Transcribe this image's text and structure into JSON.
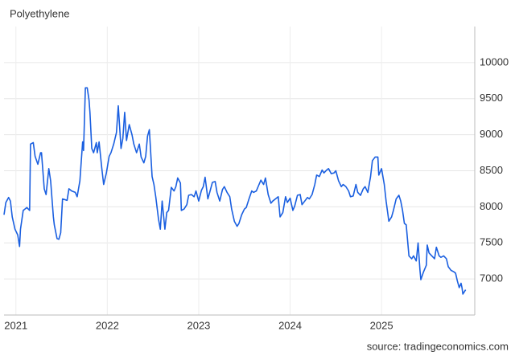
{
  "chart_data": {
    "type": "line",
    "title": "Polyethylene",
    "source": "source: tradingeconomics.com",
    "color": "#1a5fe0",
    "grid": true,
    "xlim": [
      2020.87,
      2026.02
    ],
    "xticks": [
      2021,
      2022,
      2023,
      2024,
      2025
    ],
    "ylim": [
      6500,
      10500
    ],
    "yticks": [
      7000,
      7500,
      8000,
      8500,
      9000,
      9500,
      10000
    ],
    "x": [
      2020.87,
      2020.89,
      2020.92,
      2020.94,
      2020.96,
      2020.99,
      2021.02,
      2021.04,
      2021.05,
      2021.08,
      2021.12,
      2021.15,
      2021.16,
      2021.19,
      2021.21,
      2021.24,
      2021.27,
      2021.28,
      2021.31,
      2021.33,
      2021.36,
      2021.38,
      2021.41,
      2021.42,
      2021.45,
      2021.47,
      2021.49,
      2021.51,
      2021.56,
      2021.58,
      2021.61,
      2021.65,
      2021.67,
      2021.7,
      2021.73,
      2021.74,
      2021.76,
      2021.78,
      2021.8,
      2021.81,
      2021.83,
      2021.85,
      2021.88,
      2021.89,
      2021.91,
      2021.94,
      2021.96,
      2021.99,
      2022.02,
      2022.04,
      2022.07,
      2022.1,
      2022.12,
      2022.15,
      2022.17,
      2022.19,
      2022.21,
      2022.24,
      2022.27,
      2022.29,
      2022.32,
      2022.35,
      2022.37,
      2022.4,
      2022.42,
      2022.44,
      2022.46,
      2022.49,
      2022.51,
      2022.53,
      2022.56,
      2022.58,
      2022.6,
      2022.63,
      2022.65,
      2022.67,
      2022.7,
      2022.73,
      2022.75,
      2022.77,
      2022.8,
      2022.81,
      2022.84,
      2022.87,
      2022.89,
      2022.92,
      2022.95,
      2022.97,
      2023.0,
      2023.03,
      2023.05,
      2023.07,
      2023.1,
      2023.12,
      2023.15,
      2023.18,
      2023.2,
      2023.23,
      2023.26,
      2023.28,
      2023.31,
      2023.34,
      2023.36,
      2023.39,
      2023.42,
      2023.44,
      2023.47,
      2023.5,
      2023.52,
      2023.55,
      2023.58,
      2023.6,
      2023.63,
      2023.65,
      2023.68,
      2023.71,
      2023.73,
      2023.76,
      2023.79,
      2023.81,
      2023.84,
      2023.87,
      2023.89,
      2023.92,
      2023.95,
      2023.97,
      2024.0,
      2024.03,
      2024.05,
      2024.08,
      2024.11,
      2024.13,
      2024.16,
      2024.19,
      2024.21,
      2024.24,
      2024.27,
      2024.29,
      2024.32,
      2024.35,
      2024.37,
      2024.4,
      2024.42,
      2024.45,
      2024.48,
      2024.5,
      2024.53,
      2024.56,
      2024.58,
      2024.61,
      2024.64,
      2024.66,
      2024.69,
      2024.72,
      2024.74,
      2024.77,
      2024.8,
      2024.82,
      2024.85,
      2024.88,
      2024.9,
      2024.93,
      2024.96,
      2024.97,
      2025.0,
      2025.03,
      2025.05,
      2025.08,
      2025.11,
      2025.13,
      2025.16,
      2025.19,
      2025.21,
      2025.23,
      2025.25,
      2025.27,
      2025.3,
      2025.33,
      2025.35,
      2025.38,
      2025.4,
      2025.42,
      2025.43,
      2025.46,
      2025.49,
      2025.5,
      2025.52,
      2025.55,
      2025.58,
      2025.6,
      2025.63,
      2025.65,
      2025.68,
      2025.71,
      2025.73,
      2025.76,
      2025.79,
      2025.81,
      2025.83,
      2025.85,
      2025.87,
      2025.88,
      2025.89,
      2025.92
    ],
    "values": [
      7890,
      8060,
      8130,
      8080,
      7860,
      7690,
      7610,
      7450,
      7690,
      7950,
      7990,
      7950,
      8870,
      8890,
      8700,
      8590,
      8750,
      8750,
      8250,
      8170,
      8530,
      8360,
      7860,
      7750,
      7560,
      7550,
      7640,
      8110,
      8090,
      8250,
      8220,
      8200,
      8140,
      8360,
      8900,
      8780,
      9650,
      9650,
      9480,
      9310,
      8810,
      8750,
      8890,
      8750,
      8900,
      8530,
      8310,
      8470,
      8700,
      8750,
      8870,
      9030,
      9400,
      8810,
      8950,
      9310,
      8920,
      9140,
      9000,
      8870,
      8750,
      8870,
      8690,
      8610,
      8700,
      8980,
      9070,
      8420,
      8310,
      8140,
      7830,
      7690,
      8080,
      7690,
      7920,
      7950,
      8270,
      8220,
      8280,
      8400,
      8330,
      7950,
      7970,
      8030,
      8160,
      8170,
      8140,
      8220,
      8080,
      8230,
      8280,
      8410,
      8110,
      8200,
      8340,
      8350,
      8200,
      8080,
      8240,
      8280,
      8200,
      8140,
      7970,
      7800,
      7730,
      7770,
      7890,
      7970,
      7990,
      8110,
      8220,
      8200,
      8220,
      8280,
      8370,
      8310,
      8400,
      8170,
      8050,
      8080,
      8110,
      8140,
      7860,
      7920,
      8140,
      8060,
      8120,
      7950,
      8010,
      8160,
      8170,
      8030,
      8080,
      8130,
      8110,
      8170,
      8310,
      8440,
      8420,
      8510,
      8470,
      8510,
      8530,
      8460,
      8470,
      8500,
      8360,
      8280,
      8310,
      8280,
      8220,
      8140,
      8150,
      8310,
      8200,
      8160,
      8250,
      8280,
      8200,
      8420,
      8640,
      8690,
      8690,
      8440,
      8530,
      8310,
      8080,
      7800,
      7860,
      7950,
      8110,
      8160,
      8080,
      7950,
      7770,
      7750,
      7320,
      7280,
      7320,
      7250,
      7500,
      7130,
      6990,
      7100,
      7190,
      7470,
      7360,
      7320,
      7280,
      7440,
      7320,
      7300,
      7320,
      7280,
      7170,
      7120,
      7100,
      7080,
      6970,
      6880,
      6940,
      6880,
      6790,
      6850
    ]
  }
}
